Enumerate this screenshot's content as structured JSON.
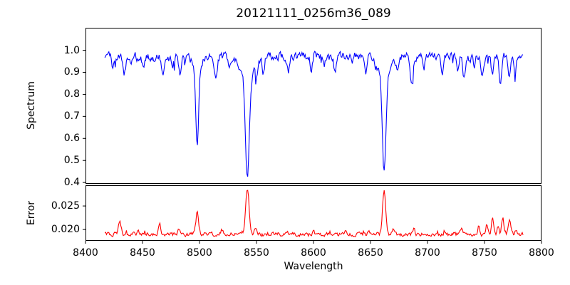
{
  "chart_data": {
    "type": "line",
    "title": "20121111_0256m36_089",
    "xlabel": "Wavelength",
    "xlim": [
      8400,
      8800
    ],
    "xticks": [
      8400,
      8450,
      8500,
      8550,
      8600,
      8650,
      8700,
      8750,
      8800
    ],
    "xtick_labels": [
      "8400",
      "8450",
      "8500",
      "8550",
      "8600",
      "8650",
      "8700",
      "8750",
      "8800"
    ],
    "x_data_range": [
      8417,
      8784
    ],
    "grid": false,
    "legend": "none",
    "panels": [
      {
        "name": "spectrum",
        "ylabel": "Spectrum",
        "line_color": "#0000ff",
        "ylim": [
          0.394,
          1.102
        ],
        "yticks": [
          0.4,
          0.5,
          0.6,
          0.7,
          0.8,
          0.9,
          1.0
        ],
        "ytick_labels": [
          "0.4",
          "0.5",
          "0.6",
          "0.7",
          "0.8",
          "0.9",
          "1.0"
        ],
        "continuum": 0.972,
        "noise_amp": 0.016,
        "noise_seed": 20121111,
        "sample_step": 0.7,
        "absorption_lines": [
          {
            "center": 8424,
            "depth": 0.045,
            "sigma": 1.0
          },
          {
            "center": 8434,
            "depth": 0.075,
            "sigma": 1.2
          },
          {
            "center": 8440,
            "depth": 0.04,
            "sigma": 0.8
          },
          {
            "center": 8451,
            "depth": 0.065,
            "sigma": 1.0
          },
          {
            "center": 8461,
            "depth": 0.04,
            "sigma": 0.8
          },
          {
            "center": 8468,
            "depth": 0.09,
            "sigma": 1.2
          },
          {
            "center": 8476,
            "depth": 0.05,
            "sigma": 0.8
          },
          {
            "center": 8483,
            "depth": 0.09,
            "sigma": 1.0
          },
          {
            "center": 8498,
            "depth": 0.34,
            "sigma": 1.2
          },
          {
            "center": 8498,
            "depth": 0.05,
            "sigma": 4.0
          },
          {
            "center": 8514,
            "depth": 0.1,
            "sigma": 1.5
          },
          {
            "center": 8526,
            "depth": 0.05,
            "sigma": 1.0
          },
          {
            "center": 8542,
            "depth": 0.46,
            "sigma": 1.7
          },
          {
            "center": 8542,
            "depth": 0.09,
            "sigma": 6.0
          },
          {
            "center": 8550,
            "depth": 0.06,
            "sigma": 1.0
          },
          {
            "center": 8556,
            "depth": 0.07,
            "sigma": 1.0
          },
          {
            "center": 8578,
            "depth": 0.07,
            "sigma": 1.2
          },
          {
            "center": 8598,
            "depth": 0.06,
            "sigma": 1.0
          },
          {
            "center": 8609,
            "depth": 0.05,
            "sigma": 1.0
          },
          {
            "center": 8619,
            "depth": 0.07,
            "sigma": 1.0
          },
          {
            "center": 8634,
            "depth": 0.05,
            "sigma": 0.8
          },
          {
            "center": 8646,
            "depth": 0.06,
            "sigma": 1.0
          },
          {
            "center": 8662,
            "depth": 0.44,
            "sigma": 1.5
          },
          {
            "center": 8662,
            "depth": 0.085,
            "sigma": 5.5
          },
          {
            "center": 8674,
            "depth": 0.07,
            "sigma": 1.0
          },
          {
            "center": 8686,
            "depth": 0.11,
            "sigma": 1.2
          },
          {
            "center": 8697,
            "depth": 0.05,
            "sigma": 0.8
          },
          {
            "center": 8713,
            "depth": 0.09,
            "sigma": 1.2
          },
          {
            "center": 8727,
            "depth": 0.06,
            "sigma": 1.0
          },
          {
            "center": 8732,
            "depth": 0.09,
            "sigma": 1.1
          },
          {
            "center": 8741,
            "depth": 0.06,
            "sigma": 0.9
          },
          {
            "center": 8748,
            "depth": 0.1,
            "sigma": 1.1
          },
          {
            "center": 8757,
            "depth": 0.09,
            "sigma": 1.0
          },
          {
            "center": 8764,
            "depth": 0.12,
            "sigma": 1.2
          },
          {
            "center": 8772,
            "depth": 0.1,
            "sigma": 1.1
          },
          {
            "center": 8777,
            "depth": 0.06,
            "sigma": 0.9
          }
        ]
      },
      {
        "name": "error",
        "ylabel": "Error",
        "line_color": "#ff0000",
        "ylim": [
          0.0176,
          0.0294
        ],
        "yticks": [
          0.02,
          0.025
        ],
        "ytick_labels": [
          "0.020",
          "0.025"
        ],
        "baseline": 0.019,
        "noise_amp": 0.00038,
        "noise_seed": 89,
        "sample_step": 0.7,
        "emission_peaks": [
          {
            "center": 8430,
            "height": 0.0031,
            "sigma": 1.2
          },
          {
            "center": 8446,
            "height": 0.0008,
            "sigma": 0.9
          },
          {
            "center": 8465,
            "height": 0.0021,
            "sigma": 1.1
          },
          {
            "center": 8482,
            "height": 0.0008,
            "sigma": 0.9
          },
          {
            "center": 8498,
            "height": 0.0046,
            "sigma": 1.2
          },
          {
            "center": 8520,
            "height": 0.001,
            "sigma": 1.0
          },
          {
            "center": 8542,
            "height": 0.0098,
            "sigma": 1.5
          },
          {
            "center": 8549,
            "height": 0.0013,
            "sigma": 1.0
          },
          {
            "center": 8600,
            "height": 0.0007,
            "sigma": 0.9
          },
          {
            "center": 8628,
            "height": 0.0007,
            "sigma": 0.8
          },
          {
            "center": 8648,
            "height": 0.0009,
            "sigma": 0.9
          },
          {
            "center": 8662,
            "height": 0.009,
            "sigma": 1.4
          },
          {
            "center": 8670,
            "height": 0.0012,
            "sigma": 1.0
          },
          {
            "center": 8688,
            "height": 0.001,
            "sigma": 0.9
          },
          {
            "center": 8730,
            "height": 0.0012,
            "sigma": 0.9
          },
          {
            "center": 8745,
            "height": 0.0018,
            "sigma": 0.9
          },
          {
            "center": 8752,
            "height": 0.002,
            "sigma": 0.9
          },
          {
            "center": 8757,
            "height": 0.0033,
            "sigma": 0.9
          },
          {
            "center": 8762,
            "height": 0.0015,
            "sigma": 0.8
          },
          {
            "center": 8766,
            "height": 0.0035,
            "sigma": 1.0
          },
          {
            "center": 8772,
            "height": 0.003,
            "sigma": 1.0
          },
          {
            "center": 8778,
            "height": 0.0012,
            "sigma": 0.8
          }
        ]
      }
    ]
  }
}
